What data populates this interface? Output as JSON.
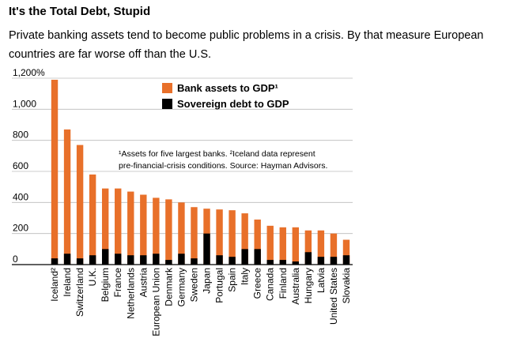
{
  "headline": "It's the Total Debt, Stupid",
  "subtitle": "Private banking assets tend to become public problems in a crisis. By that measure European countries are far worse off than the U.S.",
  "colors": {
    "bank": "#e8702a",
    "sovereign": "#000000",
    "axis": "#000000",
    "grid": "#bbbbbb"
  },
  "chart_data": {
    "type": "bar",
    "stacked": false,
    "overlay": true,
    "title": "",
    "xlabel": "",
    "ylabel": "",
    "ylim": [
      0,
      1200
    ],
    "yticks": [
      0,
      200,
      400,
      600,
      800,
      1000,
      1200
    ],
    "ytick_labels": [
      "0",
      "200",
      "400",
      "600",
      "800",
      "1,000",
      "1,200%"
    ],
    "grid": true,
    "categories": [
      "Iceland²",
      "Ireland",
      "Switzerland",
      "U.K.",
      "Belgium",
      "France",
      "Netherlands",
      "Austria",
      "European Union",
      "Denmark",
      "Germany",
      "Sweden",
      "Japan",
      "Portugal",
      "Spain",
      "Italy",
      "Greece",
      "Canada",
      "Finland",
      "Australia",
      "Hungary",
      "Latvia",
      "United States",
      "Slovakia"
    ],
    "series": [
      {
        "name": "Bank assets to GDP¹",
        "color": "#e8702a",
        "values": [
          1190,
          870,
          770,
          580,
          490,
          490,
          470,
          450,
          430,
          420,
          400,
          370,
          360,
          355,
          350,
          330,
          290,
          250,
          240,
          240,
          220,
          220,
          200,
          160
        ]
      },
      {
        "name": "Sovereign debt to GDP",
        "color": "#000000",
        "values": [
          40,
          70,
          40,
          60,
          100,
          70,
          60,
          60,
          70,
          30,
          70,
          40,
          200,
          60,
          50,
          100,
          100,
          30,
          30,
          20,
          80,
          50,
          50,
          60
        ]
      }
    ],
    "legend": [
      "Bank assets to GDP¹",
      "Sovereign debt to GDP"
    ],
    "legend_position": "top-right",
    "footnote_lines": [
      "¹Assets for five largest banks. ²Iceland data represent",
      "pre-financial-crisis conditions. Source: Hayman Advisors."
    ]
  }
}
